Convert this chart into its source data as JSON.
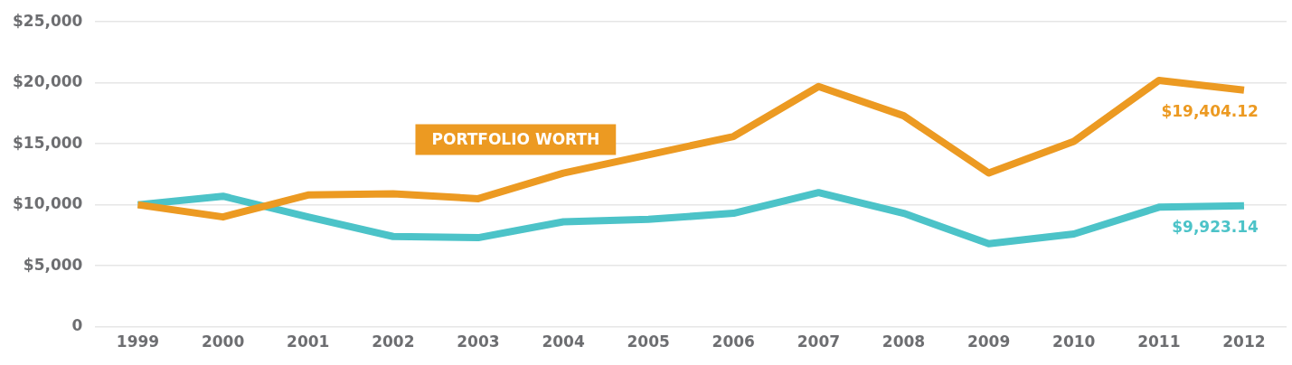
{
  "chart_data": {
    "type": "line",
    "categories": [
      "1999",
      "2000",
      "2001",
      "2002",
      "2003",
      "2004",
      "2005",
      "2006",
      "2007",
      "2008",
      "2009",
      "2010",
      "2011",
      "2012"
    ],
    "series": [
      {
        "name": "PORTFOLIO WORTH",
        "color": "#ec9a22",
        "values": [
          10000,
          9000,
          10800,
          10900,
          10500,
          12600,
          14100,
          15600,
          19700,
          17300,
          12600,
          15200,
          20200,
          19404.12
        ],
        "value_labels": [
          null,
          null,
          null,
          null,
          null,
          null,
          null,
          null,
          null,
          null,
          null,
          null,
          null,
          "$19,404.12"
        ]
      },
      {
        "color": "#4cc3c8",
        "values": [
          10000,
          10700,
          9000,
          7400,
          7300,
          8600,
          8800,
          9300,
          11000,
          9300,
          6800,
          7600,
          9800,
          9923.14
        ],
        "value_labels": [
          null,
          null,
          null,
          null,
          null,
          null,
          null,
          null,
          null,
          null,
          null,
          null,
          null,
          "$9,923.14"
        ]
      }
    ],
    "ylim": [
      0,
      25000
    ],
    "yticks": [
      0,
      {
        "value": 5000,
        "label": "$5,000"
      },
      {
        "value": 10000,
        "label": "$10,000"
      },
      {
        "value": 15000,
        "label": "$15,000"
      },
      {
        "value": 20000,
        "label": "$20,000"
      },
      {
        "value": 25000,
        "label": "$25,000"
      }
    ],
    "grid": "y",
    "legend": false,
    "marker": "none",
    "line_style": "solid"
  }
}
